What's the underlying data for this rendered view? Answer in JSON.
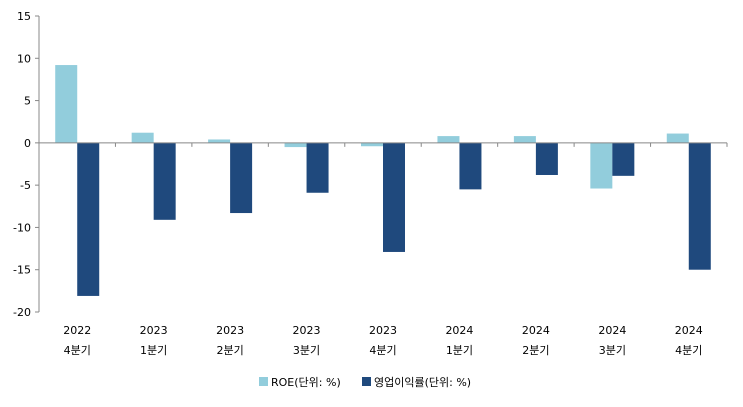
{
  "chart_data": {
    "type": "bar",
    "categories": [
      {
        "year": "2022",
        "quarter": "4분기"
      },
      {
        "year": "2023",
        "quarter": "1분기"
      },
      {
        "year": "2023",
        "quarter": "2분기"
      },
      {
        "year": "2023",
        "quarter": "3분기"
      },
      {
        "year": "2023",
        "quarter": "4분기"
      },
      {
        "year": "2024",
        "quarter": "1분기"
      },
      {
        "year": "2024",
        "quarter": "2분기"
      },
      {
        "year": "2024",
        "quarter": "3분기"
      },
      {
        "year": "2024",
        "quarter": "4분기"
      }
    ],
    "series": [
      {
        "name": "ROE(단위: %)",
        "color": "#92cddc",
        "values": [
          9.2,
          1.2,
          0.4,
          -0.5,
          -0.4,
          0.8,
          0.8,
          -5.4,
          1.1
        ]
      },
      {
        "name": "영업이익률(단위: %)",
        "color": "#1f497d",
        "values": [
          -18.1,
          -9.1,
          -8.3,
          -5.9,
          -12.9,
          -5.5,
          -3.8,
          -3.9,
          -15.0
        ]
      }
    ],
    "title": "",
    "xlabel": "",
    "ylabel": "",
    "ylim": [
      -20,
      15
    ],
    "yticks": [
      -20,
      -15,
      -10,
      -5,
      0,
      5,
      10,
      15
    ],
    "grid": false,
    "legend_position": "bottom"
  }
}
